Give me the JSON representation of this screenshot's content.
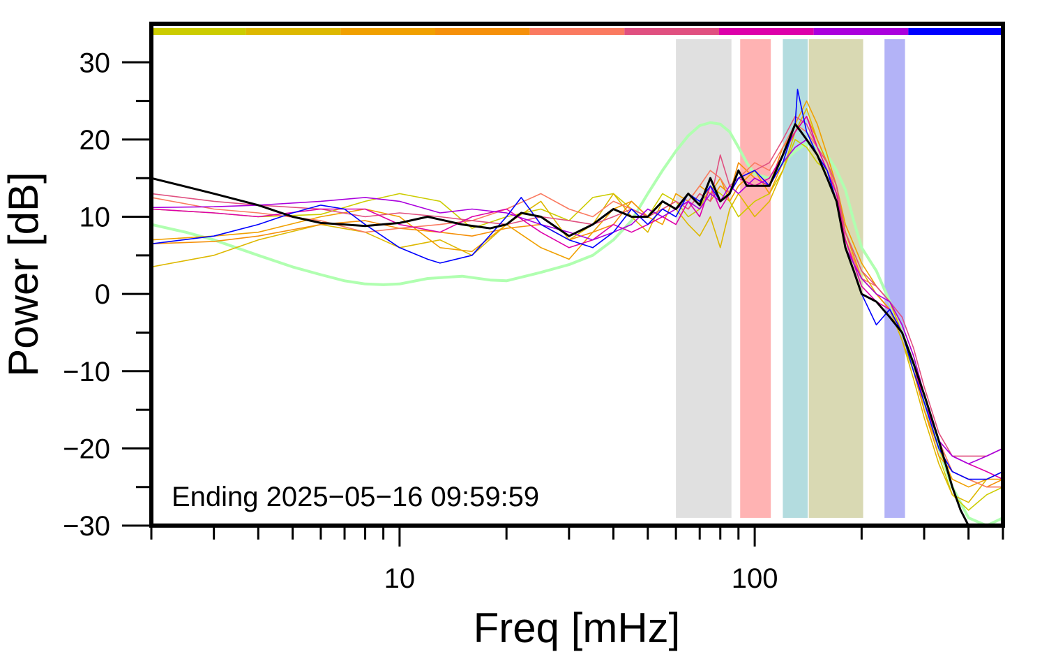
{
  "chart_data": {
    "type": "line",
    "xscale": "log",
    "xlim": [
      2,
      500
    ],
    "ylim": [
      -30,
      35
    ],
    "xlabel": "Freq [mHz]",
    "ylabel": "Power [dB]",
    "annotation": "Ending 2025−05−16 09:59:59",
    "x_major_ticks": [
      10,
      100
    ],
    "x_major_labels": [
      "10",
      "100"
    ],
    "x_minor_ticks": [
      2,
      3,
      4,
      5,
      6,
      7,
      8,
      9,
      20,
      30,
      40,
      50,
      60,
      70,
      80,
      90,
      200,
      300,
      400,
      500
    ],
    "y_major_ticks": [
      -30,
      -20,
      -10,
      0,
      10,
      20,
      30
    ],
    "y_major_labels": [
      "−30",
      "−20",
      "−10",
      "0",
      "10",
      "20",
      "30"
    ],
    "y_minor_ticks": [
      -25,
      -15,
      -5,
      5,
      15,
      25
    ],
    "bands": [
      {
        "from": 60,
        "to": 86,
        "color": "#e0e0e0"
      },
      {
        "from": 91,
        "to": 111,
        "color": "#ffb3b3"
      },
      {
        "from": 120,
        "to": 141,
        "color": "#b3dcdf"
      },
      {
        "from": 142,
        "to": 202,
        "color": "#d9d9b3"
      },
      {
        "from": 232,
        "to": 265,
        "color": "#b3b3f7"
      }
    ],
    "top_bar": {
      "y": 34,
      "colors": [
        "#cccc00",
        "#ddb800",
        "#f0a000",
        "#f5900a",
        "#fa7a60",
        "#e05080",
        "#dd00aa",
        "#aa00dd",
        "#0000ff"
      ]
    },
    "series": [
      {
        "color": "#b0ffb0",
        "width": 4,
        "x": [
          2,
          2.5,
          3,
          4,
          5,
          6,
          7,
          8,
          9,
          10,
          12,
          15,
          18,
          20,
          25,
          30,
          35,
          40,
          45,
          50,
          55,
          60,
          65,
          70,
          75,
          80,
          85,
          90,
          95,
          100,
          110,
          120,
          130,
          140,
          150,
          160,
          170,
          180,
          190,
          200,
          220,
          240,
          260,
          280,
          300,
          330,
          360,
          400,
          450,
          500
        ],
        "y": [
          9,
          8,
          7,
          5,
          3.5,
          2.5,
          1.7,
          1.3,
          1.2,
          1.3,
          2,
          2.3,
          1.8,
          1.7,
          2.8,
          3.8,
          5,
          7,
          9.5,
          13,
          16,
          18.5,
          20.5,
          21.8,
          22.2,
          22,
          21,
          19,
          17,
          15.5,
          15,
          17,
          18.5,
          19.5,
          19,
          18,
          16,
          13.5,
          9.5,
          6,
          3,
          -1,
          -5,
          -9,
          -14,
          -20,
          -25,
          -29,
          -30,
          -29
        ]
      },
      {
        "color": "#cccc00",
        "width": 1.6,
        "x": [
          2,
          3,
          4,
          6,
          8,
          10,
          13,
          16,
          20,
          25,
          30,
          35,
          40,
          45,
          50,
          55,
          60,
          65,
          70,
          75,
          80,
          85,
          90,
          100,
          110,
          120,
          130,
          140,
          150,
          160,
          170,
          180,
          200,
          220,
          240,
          260,
          280,
          300,
          330,
          360,
          400,
          450,
          500
        ],
        "y": [
          11,
          10.5,
          10,
          10.3,
          12,
          13,
          12,
          8.5,
          10,
          11,
          9.5,
          12.5,
          13,
          11,
          10,
          13,
          12,
          10,
          11,
          14,
          13,
          12,
          10,
          12,
          13,
          16,
          20,
          19,
          17,
          16,
          12,
          7,
          2,
          0,
          -2,
          -6,
          -10,
          -15,
          -21,
          -26,
          -28,
          -26,
          -25
        ]
      },
      {
        "color": "#ddb800",
        "width": 1.6,
        "x": [
          2,
          3,
          4,
          6,
          8,
          10,
          13,
          16,
          20,
          25,
          30,
          35,
          40,
          45,
          50,
          55,
          60,
          65,
          70,
          75,
          80,
          85,
          90,
          100,
          110,
          120,
          130,
          140,
          150,
          160,
          170,
          180,
          200,
          220,
          240,
          260,
          280,
          300,
          330,
          360,
          400,
          450,
          500
        ],
        "y": [
          3.5,
          5,
          7,
          9,
          8,
          6,
          7,
          5,
          9,
          12,
          7,
          9,
          13,
          10,
          8,
          12,
          11,
          9,
          7.5,
          10,
          6,
          11,
          13,
          10,
          12,
          16,
          21,
          24,
          20,
          17,
          13,
          8,
          3,
          0,
          -2,
          -6,
          -11,
          -16,
          -22,
          -26,
          -27,
          -24,
          -23
        ]
      },
      {
        "color": "#f0a000",
        "width": 1.6,
        "x": [
          2,
          3,
          4,
          6,
          8,
          10,
          13,
          16,
          20,
          25,
          30,
          35,
          40,
          45,
          50,
          55,
          60,
          65,
          70,
          75,
          80,
          85,
          90,
          100,
          110,
          120,
          130,
          140,
          150,
          160,
          170,
          180,
          200,
          220,
          240,
          260,
          280,
          300,
          330,
          360,
          400,
          450,
          500
        ],
        "y": [
          7,
          7.5,
          8,
          10,
          11,
          10,
          6,
          5.5,
          9,
          6,
          4.5,
          8,
          11,
          12,
          10,
          9,
          13,
          12,
          14,
          13,
          15,
          12,
          14,
          16,
          13,
          17,
          22,
          25,
          22,
          18,
          14,
          9,
          4,
          1,
          -1,
          -5,
          -9,
          -15,
          -20,
          -24,
          -25,
          -24,
          -24
        ]
      },
      {
        "color": "#f5900a",
        "width": 1.6,
        "x": [
          2,
          3,
          4,
          6,
          8,
          10,
          13,
          16,
          20,
          25,
          30,
          35,
          40,
          45,
          50,
          55,
          60,
          65,
          70,
          75,
          80,
          85,
          90,
          100,
          110,
          120,
          130,
          140,
          150,
          160,
          170,
          180,
          200,
          220,
          240,
          260,
          280,
          300,
          330,
          360,
          400,
          450,
          500
        ],
        "y": [
          6.5,
          6.8,
          7.5,
          9,
          9.5,
          8.5,
          8,
          7.5,
          8.5,
          9,
          7,
          8,
          9,
          12,
          10,
          11,
          12,
          11,
          13,
          12,
          14,
          13,
          17,
          15,
          14,
          19,
          21,
          23,
          20,
          17,
          14,
          8,
          2,
          0,
          -2,
          -5,
          -10,
          -15,
          -21,
          -23,
          -24,
          -25,
          -24
        ]
      },
      {
        "color": "#fa7a60",
        "width": 1.6,
        "x": [
          2,
          3,
          4,
          6,
          8,
          10,
          13,
          16,
          20,
          25,
          30,
          35,
          40,
          45,
          50,
          55,
          60,
          65,
          70,
          75,
          80,
          85,
          90,
          100,
          110,
          120,
          130,
          140,
          150,
          160,
          170,
          180,
          200,
          220,
          240,
          260,
          280,
          300,
          330,
          360,
          400,
          450,
          500
        ],
        "y": [
          12.5,
          11,
          10.5,
          9.5,
          8,
          8.5,
          9,
          9.5,
          11,
          13,
          11,
          10,
          12,
          11,
          10,
          12,
          11,
          12,
          14,
          16,
          15,
          13,
          15,
          17,
          16,
          19,
          22,
          21,
          19,
          17,
          13,
          7,
          2,
          1,
          -1,
          -4,
          -8,
          -13,
          -19,
          -23,
          -24,
          -25,
          -25
        ]
      },
      {
        "color": "#e05080",
        "width": 1.6,
        "x": [
          2,
          3,
          4,
          6,
          8,
          10,
          13,
          16,
          20,
          25,
          30,
          35,
          40,
          45,
          50,
          55,
          60,
          65,
          70,
          75,
          80,
          85,
          90,
          100,
          110,
          120,
          130,
          140,
          150,
          160,
          170,
          180,
          200,
          220,
          240,
          260,
          280,
          300,
          330,
          360,
          400,
          450,
          500
        ],
        "y": [
          13,
          12,
          11.5,
          11,
          10,
          10.5,
          10,
          9.5,
          9,
          10,
          9.5,
          9,
          10,
          11,
          10,
          11,
          12,
          11,
          13,
          12,
          18,
          14,
          15,
          16,
          17,
          20,
          23,
          22,
          19,
          17,
          14,
          8,
          3,
          1,
          -1,
          -3,
          -7,
          -12,
          -18,
          -21,
          -21,
          -21,
          -20
        ]
      },
      {
        "color": "#dd00aa",
        "width": 1.6,
        "x": [
          2,
          3,
          4,
          6,
          8,
          10,
          13,
          16,
          20,
          25,
          30,
          35,
          40,
          45,
          50,
          55,
          60,
          65,
          70,
          75,
          80,
          85,
          90,
          100,
          110,
          120,
          130,
          140,
          150,
          160,
          170,
          180,
          200,
          220,
          240,
          260,
          280,
          300,
          330,
          360,
          400,
          450,
          500
        ],
        "y": [
          11,
          10.5,
          10,
          11,
          11,
          9,
          8,
          10,
          11,
          8,
          6,
          7,
          9,
          8,
          9,
          10,
          9,
          12,
          10,
          14,
          11,
          13,
          15,
          14,
          15,
          18,
          21,
          23,
          19,
          16,
          13,
          7,
          1,
          -1,
          -2,
          -5,
          -9,
          -14,
          -19,
          -21,
          -22,
          -23,
          -24
        ]
      },
      {
        "color": "#aa00dd",
        "width": 1.6,
        "x": [
          2,
          3,
          4,
          6,
          8,
          10,
          13,
          16,
          20,
          25,
          30,
          35,
          40,
          45,
          50,
          55,
          60,
          65,
          70,
          75,
          80,
          85,
          90,
          100,
          110,
          120,
          130,
          140,
          150,
          160,
          170,
          180,
          200,
          220,
          240,
          260,
          280,
          300,
          330,
          360,
          400,
          450,
          500
        ],
        "y": [
          11.2,
          11.3,
          11.5,
          12,
          12.5,
          12,
          10.5,
          11,
          10.5,
          9,
          8,
          7,
          8,
          9,
          11,
          10,
          11,
          12,
          11,
          13,
          12,
          14,
          13,
          15,
          14,
          17,
          19,
          20,
          18,
          16,
          12,
          6,
          2,
          0,
          -1,
          -4,
          -8,
          -13,
          -19,
          -21,
          -22,
          -21,
          -20
        ]
      },
      {
        "color": "#0000ff",
        "width": 1.6,
        "x": [
          2,
          3,
          4,
          5,
          6,
          7,
          8,
          10,
          12,
          13,
          16,
          20,
          22,
          25,
          30,
          35,
          40,
          45,
          50,
          55,
          60,
          65,
          70,
          75,
          80,
          85,
          90,
          100,
          110,
          120,
          130,
          132,
          140,
          150,
          160,
          170,
          180,
          200,
          220,
          240,
          260,
          280,
          300,
          330,
          360,
          400,
          450,
          500
        ],
        "y": [
          6.5,
          7.5,
          9,
          10.5,
          11.5,
          11,
          9,
          6,
          4.5,
          4,
          5,
          10,
          12.5,
          9,
          7,
          6,
          8,
          11,
          9,
          11,
          10,
          13,
          12,
          14,
          12,
          13,
          15,
          16,
          14,
          17,
          22,
          26.5,
          21,
          18,
          16,
          12,
          6,
          0,
          -4,
          -2,
          -5,
          -10,
          -14,
          -20,
          -23,
          -24,
          -24,
          -23
        ]
      },
      {
        "color": "#000000",
        "width": 3,
        "x": [
          2,
          3,
          4,
          5,
          6,
          7,
          8,
          10,
          12,
          15,
          18,
          20,
          22,
          25,
          30,
          35,
          40,
          45,
          50,
          55,
          60,
          65,
          70,
          75,
          80,
          85,
          90,
          95,
          100,
          110,
          120,
          125,
          130,
          135,
          140,
          150,
          160,
          170,
          180,
          190,
          200,
          220,
          240,
          260,
          280,
          300,
          330,
          360,
          380,
          400,
          450,
          500
        ],
        "y": [
          15,
          13,
          11.5,
          10,
          9.2,
          9,
          8.8,
          9.2,
          10,
          9,
          8.5,
          9,
          10.5,
          10,
          7.5,
          9,
          11,
          10,
          10,
          12,
          11,
          13,
          11.5,
          15,
          12,
          13,
          16,
          14,
          14,
          14,
          18,
          20,
          22,
          21,
          20,
          18,
          15,
          12,
          6,
          3,
          0,
          -1,
          -3,
          -5,
          -9,
          -13,
          -19,
          -25,
          -28,
          -30,
          -30,
          -30
        ]
      }
    ]
  }
}
